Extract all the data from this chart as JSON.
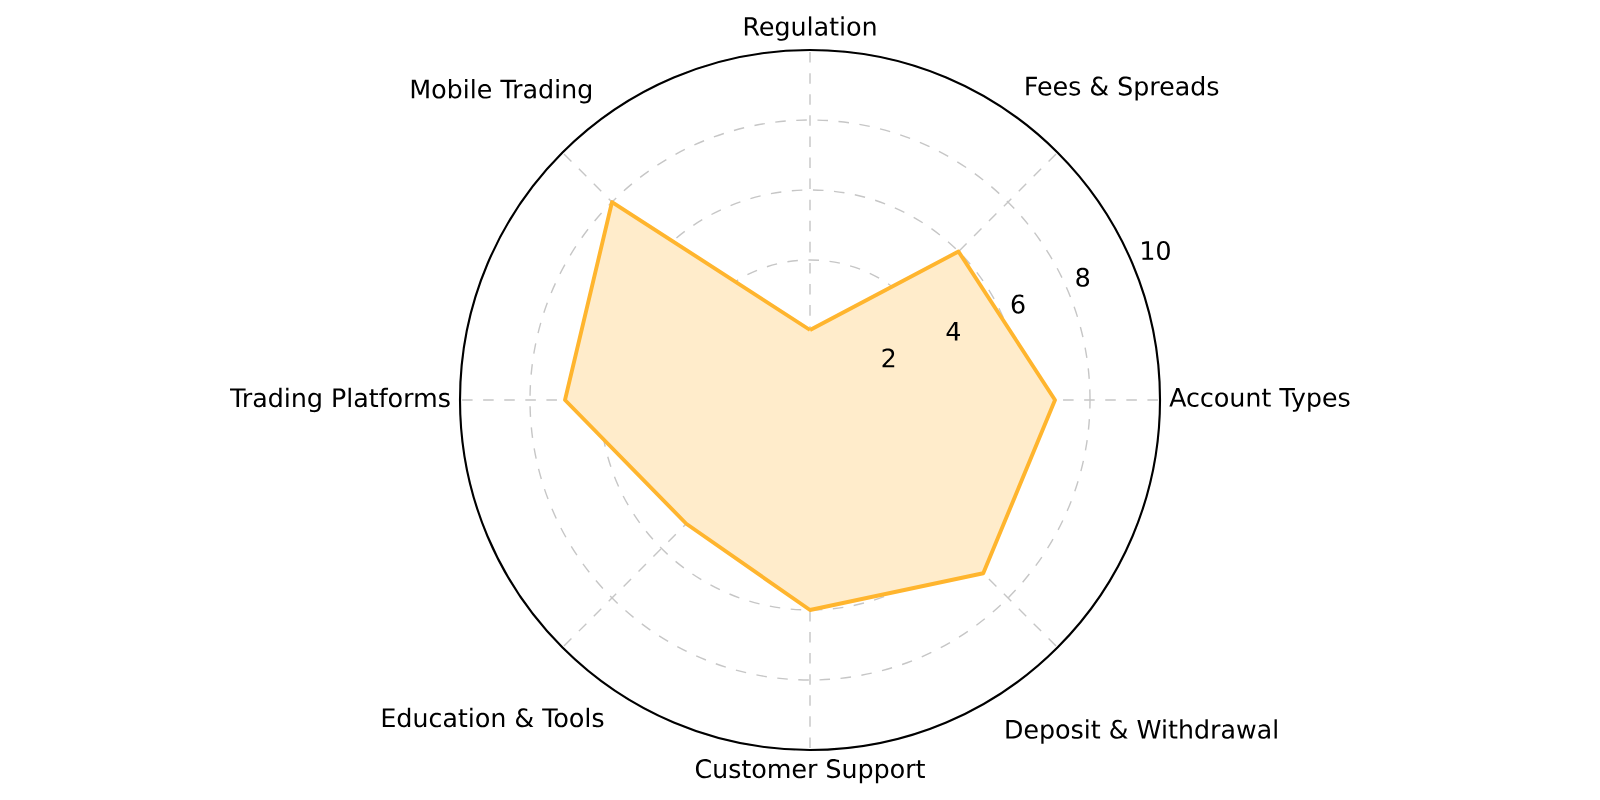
{
  "chart_data": {
    "type": "radar",
    "categories": [
      "Regulation",
      "Fees & Spreads",
      "Account Types",
      "Deposit & Withdrawal",
      "Customer Support",
      "Education & Tools",
      "Trading Platforms",
      "Mobile Trading"
    ],
    "series": [
      {
        "color": "#ffb52e",
        "values": [
          2,
          6,
          7,
          7,
          6,
          5,
          7,
          8
        ]
      }
    ],
    "ylim": [
      0,
      10
    ],
    "yticks": [
      2,
      4,
      6,
      8,
      10
    ],
    "grid": true
  }
}
